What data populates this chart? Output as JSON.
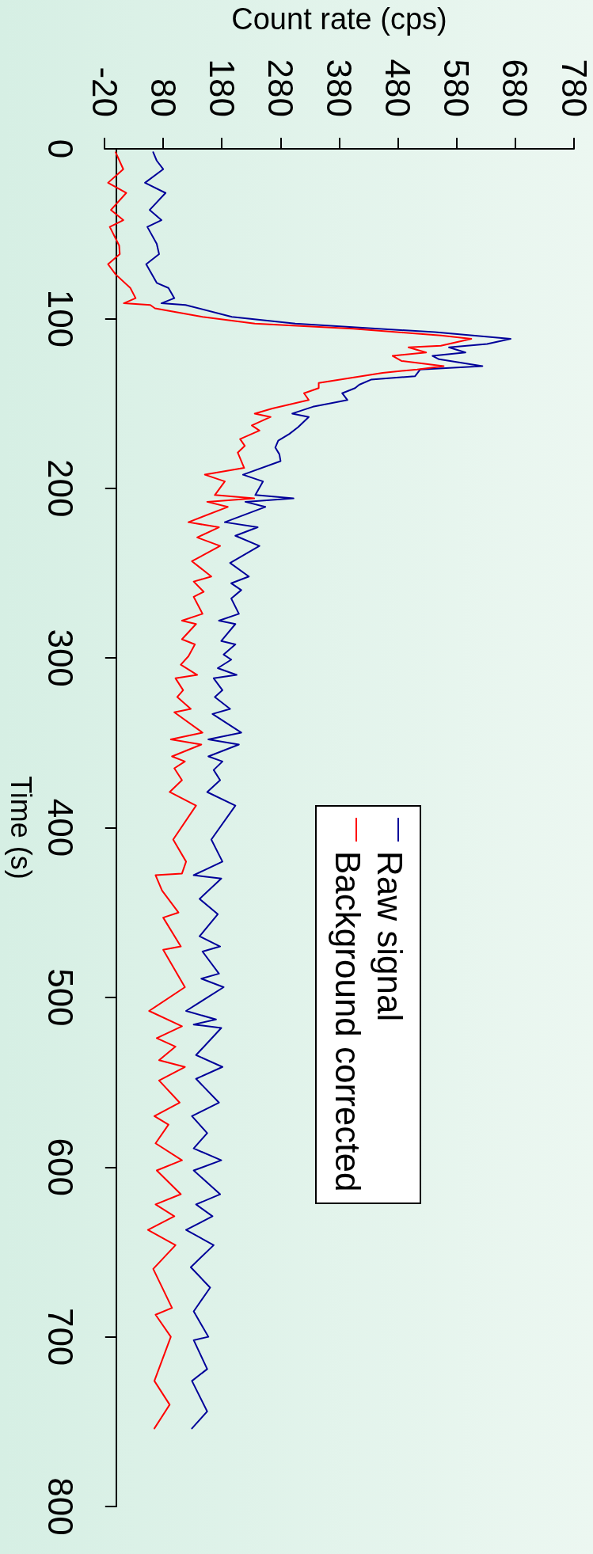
{
  "chart_data": {
    "type": "line",
    "xlabel": "Count rate (cps)",
    "ylabel": "Time (s)",
    "xlim": [
      -20,
      780
    ],
    "xticks": [
      -20,
      80,
      180,
      280,
      380,
      480,
      580,
      680,
      780
    ],
    "ylim": [
      800,
      0
    ],
    "yticks": [
      0,
      100,
      200,
      300,
      400,
      500,
      600,
      700,
      800
    ],
    "legend": "right",
    "series": [
      {
        "name": "Raw signal",
        "color": "#000099",
        "values": [
          2,
          7,
          12,
          20,
          26,
          36,
          42,
          46,
          56,
          62,
          68,
          79,
          82,
          88,
          91,
          92,
          99,
          103,
          108,
          112,
          115,
          117,
          120,
          122,
          124,
          128,
          130,
          134,
          136,
          139,
          141,
          144,
          148,
          152,
          156,
          158,
          164,
          168,
          172,
          176,
          180,
          184,
          192,
          196,
          204,
          206,
          208,
          211,
          220,
          223,
          228,
          234,
          244,
          252,
          256,
          260,
          265,
          274,
          278,
          280,
          290,
          292,
          298,
          301,
          306,
          310,
          312,
          319,
          323,
          330,
          333,
          344,
          348,
          351,
          358,
          361,
          366,
          372,
          379,
          387,
          407,
          420,
          428,
          430,
          442,
          451,
          464,
          470,
          473,
          486,
          489,
          494,
          508,
          513,
          516,
          518,
          534,
          541,
          548,
          562,
          570,
          580,
          589,
          596,
          602,
          616,
          622,
          629,
          637,
          646,
          659,
          671,
          685,
          700,
          702,
          719,
          726,
          744,
          754
        ],
        "x": [
          63,
          69,
          80,
          49,
          84,
          57,
          77,
          53,
          69,
          73,
          51,
          69,
          89,
          99,
          77,
          118,
          197,
          305,
          543,
          672,
          632,
          567,
          595,
          539,
          550,
          624,
          518,
          509,
          434,
          414,
          407,
          385,
          394,
          335,
          300,
          328,
          310,
          295,
          276,
          271,
          278,
          280,
          216,
          250,
          237,
          302,
          220,
          254,
          185,
          241,
          203,
          244,
          194,
          226,
          196,
          213,
          196,
          209,
          175,
          203,
          179,
          203,
          183,
          196,
          173,
          205,
          166,
          181,
          168,
          194,
          164,
          213,
          157,
          209,
          157,
          181,
          166,
          177,
          155,
          203,
          162,
          181,
          132,
          179,
          142,
          173,
          142,
          177,
          147,
          175,
          145,
          183,
          119,
          170,
          132,
          179,
          136,
          181,
          136,
          175,
          129,
          155,
          132,
          179,
          132,
          177,
          136,
          164,
          119,
          166,
          127,
          160,
          132,
          157,
          132,
          155,
          129,
          155,
          129
        ]
      },
      {
        "name": "Background corrected",
        "color": "#ff0000",
        "values": [
          2,
          12,
          20,
          26,
          36,
          42,
          46,
          57,
          62,
          68,
          74,
          82,
          88,
          91,
          92,
          94,
          96,
          99,
          103,
          106,
          108,
          110,
          112,
          116,
          117,
          120,
          122,
          125,
          128,
          130,
          132,
          138,
          141,
          144,
          148,
          153,
          156,
          158,
          163,
          166,
          171,
          175,
          179,
          188,
          192,
          196,
          204,
          206,
          208,
          211,
          220,
          223,
          229,
          234,
          243,
          252,
          255,
          261,
          264,
          274,
          278,
          280,
          289,
          292,
          299,
          304,
          310,
          312,
          319,
          323,
          330,
          332,
          344,
          348,
          351,
          358,
          361,
          365,
          372,
          379,
          387,
          407,
          420,
          427,
          428,
          437,
          450,
          453,
          470,
          472,
          494,
          508,
          517,
          524,
          529,
          537,
          541,
          549,
          562,
          570,
          575,
          586,
          596,
          602,
          616,
          622,
          629,
          637,
          646,
          660,
          683,
          687,
          700,
          726,
          740,
          754
        ],
        "x": [
          -1,
          12,
          -14,
          17,
          -9,
          12,
          -11,
          5,
          6,
          -14,
          -1,
          24,
          33,
          13,
          58,
          66,
          98,
          147,
          236,
          404,
          478,
          553,
          605,
          553,
          498,
          528,
          471,
          486,
          558,
          513,
          454,
          345,
          345,
          320,
          328,
          266,
          236,
          263,
          231,
          244,
          211,
          219,
          207,
          218,
          151,
          185,
          168,
          235,
          155,
          190,
          123,
          175,
          138,
          177,
          129,
          162,
          132,
          149,
          132,
          147,
          112,
          136,
          112,
          134,
          123,
          110,
          138,
          101,
          114,
          104,
          127,
          99,
          147,
          93,
          145,
          95,
          117,
          99,
          112,
          91,
          136,
          97,
          119,
          112,
          67,
          78,
          106,
          80,
          110,
          80,
          117,
          56,
          112,
          69,
          101,
          73,
          117,
          73,
          108,
          65,
          89,
          67,
          112,
          69,
          110,
          67,
          99,
          54,
          101,
          63,
          95,
          67,
          93,
          65,
          91,
          65
        ]
      }
    ]
  }
}
